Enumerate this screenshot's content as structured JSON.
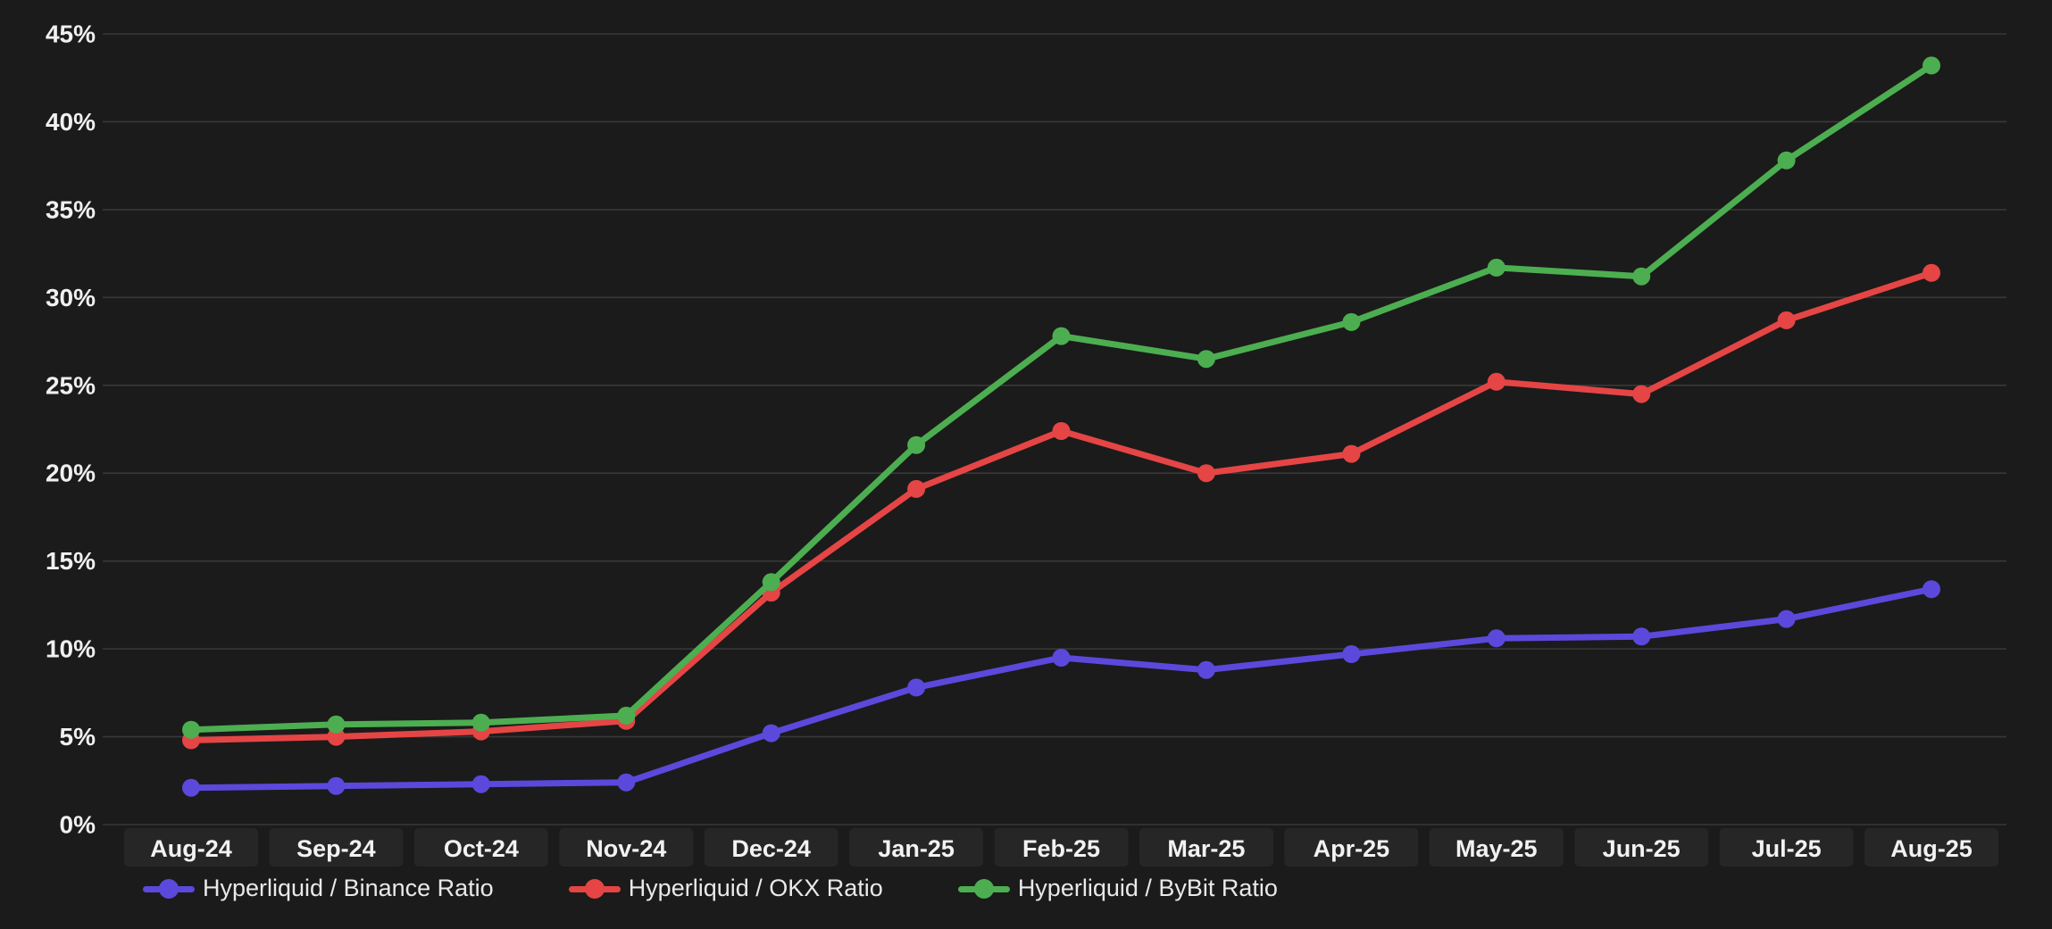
{
  "chart_data": {
    "type": "line",
    "title": "",
    "xlabel": "",
    "ylabel": "",
    "ylim": [
      0,
      45
    ],
    "ytick_labels": [
      "45%",
      "40%",
      "35%",
      "30%",
      "25%",
      "20%",
      "15%",
      "10%",
      "5%",
      "0%"
    ],
    "grid": "horizontal",
    "legend_position": "bottom-left",
    "categories": [
      "Aug-24",
      "Sep-24",
      "Oct-24",
      "Nov-24",
      "Dec-24",
      "Jan-25",
      "Feb-25",
      "Mar-25",
      "Apr-25",
      "May-25",
      "Jun-25",
      "Jul-25",
      "Aug-25"
    ],
    "series": [
      {
        "name": "Hyperliquid / Binance Ratio",
        "color": "#5b49dc",
        "values": [
          2.1,
          2.2,
          2.3,
          2.4,
          5.2,
          7.8,
          9.5,
          8.8,
          9.7,
          10.6,
          10.7,
          11.7,
          13.4
        ]
      },
      {
        "name": "Hyperliquid / OKX Ratio",
        "color": "#e54545",
        "values": [
          4.8,
          5.0,
          5.3,
          5.9,
          13.2,
          19.1,
          22.4,
          20.0,
          21.1,
          25.2,
          24.5,
          28.7,
          31.4
        ]
      },
      {
        "name": "Hyperliquid / ByBit Ratio",
        "color": "#4cae50",
        "values": [
          5.4,
          5.7,
          5.8,
          6.2,
          13.8,
          21.6,
          27.8,
          26.5,
          28.6,
          31.7,
          31.2,
          37.8,
          43.2
        ]
      }
    ]
  },
  "colors": {
    "background": "#1b1b1b",
    "gridline": "#383838",
    "axis_text": "#f0f0f0",
    "month_cell_bg": "#262626",
    "legend_text": "#e9e9e9"
  }
}
